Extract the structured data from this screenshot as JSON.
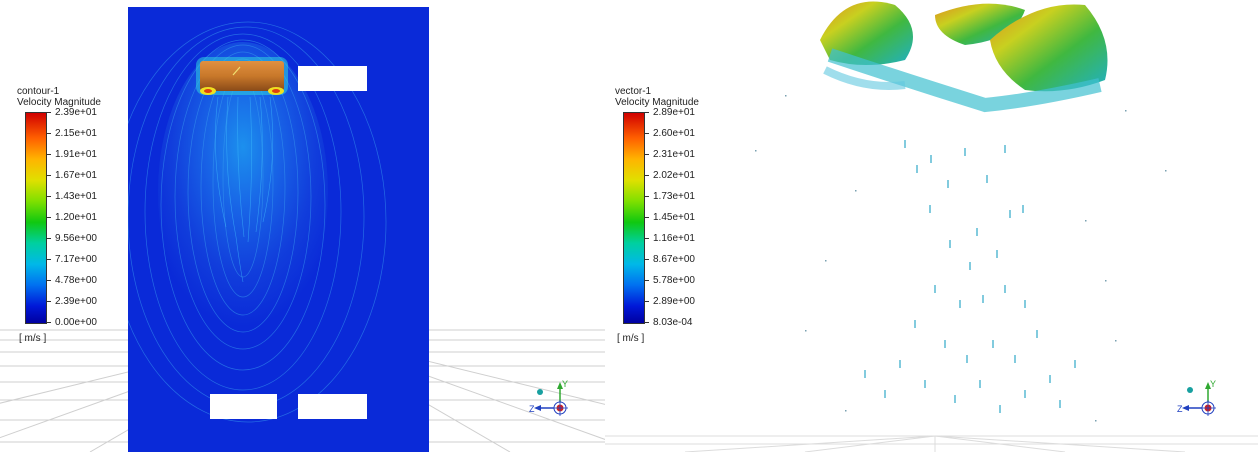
{
  "left_view": {
    "legend": {
      "title": "contour-1",
      "variable": "Velocity Magnitude",
      "unit": "[ m/s ]",
      "ticks": [
        "2.39e+01",
        "2.15e+01",
        "1.91e+01",
        "1.67e+01",
        "1.43e+01",
        "1.20e+01",
        "9.56e+00",
        "7.17e+00",
        "4.78e+00",
        "2.39e+00",
        "0.00e+00"
      ]
    }
  },
  "right_view": {
    "legend": {
      "title": "vector-1",
      "variable": "Velocity Magnitude",
      "unit": "[ m/s ]",
      "ticks": [
        "2.89e+01",
        "2.60e+01",
        "2.31e+01",
        "2.02e+01",
        "1.73e+01",
        "1.45e+01",
        "1.16e+01",
        "8.67e+00",
        "5.78e+00",
        "2.89e+00",
        "8.03e-04"
      ]
    }
  },
  "axis_triad": {
    "y_label": "Y",
    "z_label": "Z"
  },
  "colors": {
    "field_background": "#0a2ad8",
    "rotor": "#c8782a",
    "axis_y": "#2fa830",
    "axis_z": "#2040c0",
    "axis_x": "#d02020"
  }
}
